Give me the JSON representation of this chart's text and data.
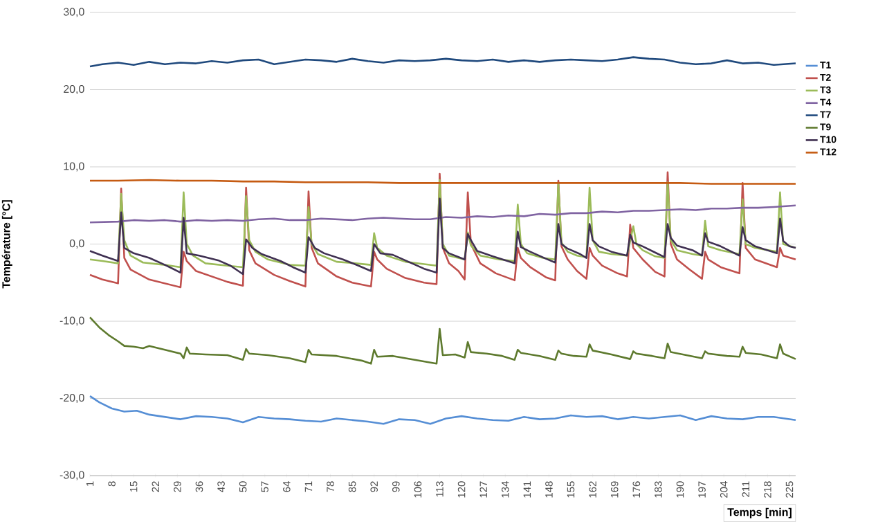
{
  "chart_data": {
    "type": "line",
    "xlabel": "Temps [min]",
    "ylabel": "Température [°C]",
    "xlim": [
      1,
      227
    ],
    "xticks": [
      1,
      8,
      15,
      22,
      29,
      36,
      43,
      50,
      57,
      64,
      71,
      78,
      85,
      92,
      99,
      106,
      113,
      120,
      127,
      134,
      141,
      148,
      155,
      162,
      169,
      176,
      183,
      190,
      197,
      204,
      211,
      218,
      225
    ],
    "ylim": [
      -30,
      30
    ],
    "yticks": [
      {
        "value": -30,
        "label": "-30,0"
      },
      {
        "value": -20,
        "label": "-20,0"
      },
      {
        "value": -10,
        "label": "-10,0"
      },
      {
        "value": 0,
        "label": "0,0"
      },
      {
        "value": 10,
        "label": "10,0"
      },
      {
        "value": 20,
        "label": "20,0"
      },
      {
        "value": 30,
        "label": "30,0"
      }
    ],
    "grid": "y",
    "legend": "right",
    "marker": "none",
    "line_style": "solid",
    "series": [
      {
        "name": "T1",
        "color": "#558ed5",
        "x": [
          1,
          4,
          8,
          12,
          16,
          20,
          25,
          30,
          35,
          40,
          45,
          50,
          55,
          60,
          65,
          70,
          75,
          80,
          85,
          90,
          95,
          100,
          105,
          110,
          115,
          120,
          125,
          130,
          135,
          140,
          145,
          150,
          155,
          160,
          165,
          170,
          175,
          180,
          185,
          190,
          195,
          200,
          205,
          210,
          215,
          220,
          227
        ],
        "values": [
          -19.7,
          -20.5,
          -21.3,
          -21.7,
          -21.6,
          -22.1,
          -22.4,
          -22.7,
          -22.3,
          -22.4,
          -22.6,
          -23.1,
          -22.4,
          -22.6,
          -22.7,
          -22.9,
          -23.0,
          -22.6,
          -22.8,
          -23.0,
          -23.3,
          -22.7,
          -22.8,
          -23.3,
          -22.6,
          -22.3,
          -22.6,
          -22.8,
          -22.9,
          -22.4,
          -22.7,
          -22.6,
          -22.2,
          -22.4,
          -22.3,
          -22.7,
          -22.4,
          -22.6,
          -22.4,
          -22.2,
          -22.8,
          -22.3,
          -22.6,
          -22.7,
          -22.4,
          -22.4,
          -22.8
        ]
      },
      {
        "name": "T2",
        "color": "#c0504d",
        "x": [
          1,
          5,
          10,
          11,
          12,
          14,
          20,
          30,
          31,
          32,
          35,
          40,
          45,
          50,
          51,
          52,
          54,
          60,
          65,
          70,
          71,
          72,
          74,
          80,
          85,
          91,
          92,
          93,
          96,
          102,
          108,
          112,
          113,
          114,
          116,
          119,
          121,
          122,
          123,
          126,
          131,
          137,
          138,
          139,
          142,
          147,
          150,
          151,
          152,
          154,
          157,
          160,
          161,
          162,
          165,
          170,
          173,
          174,
          175,
          178,
          182,
          185,
          186,
          187,
          189,
          193,
          197,
          198,
          199,
          203,
          209,
          210,
          211,
          214,
          221,
          222,
          223,
          227
        ],
        "values": [
          -4.0,
          -4.6,
          -5.1,
          7.2,
          -1.8,
          -3.3,
          -4.6,
          -5.6,
          -1.0,
          -2.2,
          -3.5,
          -4.2,
          -4.9,
          -5.4,
          7.3,
          -0.8,
          -2.5,
          -4.0,
          -4.8,
          -5.5,
          6.8,
          -0.5,
          -2.5,
          -4.2,
          -5.0,
          -5.5,
          -1.0,
          -2.0,
          -3.2,
          -4.4,
          -5.0,
          -5.2,
          9.1,
          -0.5,
          -2.5,
          -3.5,
          -4.6,
          6.7,
          0.0,
          -2.5,
          -3.8,
          -4.7,
          -0.5,
          -1.8,
          -3.0,
          -4.3,
          -4.7,
          8.2,
          -0.3,
          -2.0,
          -3.5,
          -4.5,
          -0.5,
          -1.5,
          -2.8,
          -3.8,
          -4.2,
          2.5,
          -0.5,
          -2.0,
          -3.6,
          -4.2,
          9.3,
          0.0,
          -2.0,
          -3.3,
          -4.5,
          -1.0,
          -2.0,
          -3.0,
          -3.8,
          7.9,
          -0.5,
          -2.0,
          -3.0,
          -0.5,
          -1.5,
          -2.0
        ]
      },
      {
        "name": "T3",
        "color": "#9bbb59",
        "x": [
          1,
          5,
          10,
          11,
          12,
          14,
          18,
          25,
          30,
          31,
          32,
          34,
          38,
          45,
          50,
          51,
          52,
          54,
          58,
          65,
          70,
          71,
          72,
          74,
          80,
          86,
          91,
          92,
          93,
          96,
          102,
          108,
          112,
          113,
          114,
          116,
          121,
          122,
          123,
          126,
          132,
          137,
          138,
          139,
          141,
          146,
          150,
          151,
          152,
          154,
          157,
          160,
          161,
          162,
          164,
          168,
          173,
          175,
          176,
          178,
          182,
          185,
          186,
          187,
          189,
          194,
          197,
          198,
          199,
          203,
          209,
          210,
          211,
          214,
          221,
          222,
          223,
          227
        ],
        "values": [
          -2.0,
          -2.2,
          -2.5,
          6.5,
          0.5,
          -1.5,
          -2.4,
          -2.7,
          -3.0,
          6.7,
          0.0,
          -1.5,
          -2.5,
          -2.8,
          -3.0,
          6.2,
          0.5,
          -1.0,
          -2.0,
          -2.7,
          -2.8,
          4.8,
          0.0,
          -1.3,
          -2.3,
          -2.5,
          -2.7,
          1.4,
          -0.5,
          -1.5,
          -2.3,
          -2.6,
          -2.8,
          8.3,
          0.0,
          -1.5,
          -2.0,
          1.5,
          -0.2,
          -1.5,
          -2.0,
          -2.2,
          5.1,
          0.0,
          -1.2,
          -1.8,
          -2.0,
          7.9,
          0.2,
          -1.0,
          -1.5,
          -1.7,
          7.3,
          0.5,
          -1.0,
          -1.3,
          -1.5,
          2.3,
          0.0,
          -0.8,
          -1.6,
          -1.8,
          8.0,
          0.5,
          -0.8,
          -1.3,
          -1.5,
          3.0,
          -0.3,
          -0.8,
          -1.3,
          5.8,
          0.0,
          -0.5,
          -1.0,
          6.7,
          0.0,
          -0.5
        ]
      },
      {
        "name": "T4",
        "color": "#8064a2",
        "x": [
          1,
          10,
          15,
          20,
          25,
          30,
          35,
          40,
          45,
          50,
          55,
          60,
          65,
          70,
          75,
          80,
          85,
          90,
          95,
          100,
          105,
          110,
          115,
          120,
          125,
          130,
          135,
          140,
          145,
          150,
          155,
          160,
          165,
          170,
          175,
          180,
          185,
          190,
          195,
          200,
          205,
          210,
          215,
          220,
          227
        ],
        "values": [
          2.8,
          2.9,
          3.1,
          3.0,
          3.1,
          2.9,
          3.1,
          3.0,
          3.1,
          3.0,
          3.2,
          3.3,
          3.1,
          3.1,
          3.3,
          3.2,
          3.1,
          3.3,
          3.4,
          3.3,
          3.2,
          3.2,
          3.5,
          3.4,
          3.6,
          3.5,
          3.7,
          3.6,
          3.9,
          3.8,
          4.0,
          4.0,
          4.2,
          4.1,
          4.3,
          4.3,
          4.4,
          4.5,
          4.4,
          4.6,
          4.6,
          4.7,
          4.7,
          4.8,
          5.0
        ]
      },
      {
        "name": "T7",
        "color": "#1f497d",
        "x": [
          1,
          5,
          10,
          15,
          20,
          25,
          30,
          35,
          40,
          45,
          50,
          55,
          60,
          65,
          70,
          75,
          80,
          85,
          90,
          95,
          100,
          105,
          110,
          115,
          120,
          125,
          130,
          135,
          140,
          145,
          150,
          155,
          160,
          165,
          170,
          175,
          180,
          185,
          190,
          195,
          200,
          205,
          210,
          215,
          220,
          227
        ],
        "values": [
          23.0,
          23.3,
          23.5,
          23.2,
          23.6,
          23.3,
          23.5,
          23.4,
          23.7,
          23.5,
          23.8,
          23.9,
          23.3,
          23.6,
          23.9,
          23.8,
          23.6,
          24.0,
          23.7,
          23.5,
          23.8,
          23.7,
          23.8,
          24.0,
          23.8,
          23.7,
          23.9,
          23.6,
          23.8,
          23.6,
          23.8,
          23.9,
          23.8,
          23.7,
          23.9,
          24.2,
          24.0,
          23.9,
          23.5,
          23.3,
          23.4,
          23.8,
          23.4,
          23.5,
          23.2,
          23.4
        ]
      },
      {
        "name": "T9",
        "color": "#5e7a2e",
        "x": [
          1,
          4,
          7,
          10,
          12,
          15,
          18,
          20,
          25,
          30,
          31,
          32,
          33,
          38,
          45,
          50,
          51,
          52,
          58,
          65,
          70,
          71,
          72,
          80,
          88,
          91,
          92,
          93,
          98,
          105,
          112,
          113,
          114,
          118,
          121,
          122,
          123,
          128,
          133,
          137,
          138,
          139,
          145,
          150,
          151,
          152,
          156,
          160,
          161,
          162,
          168,
          174,
          175,
          176,
          181,
          185,
          186,
          187,
          192,
          197,
          198,
          199,
          205,
          209,
          210,
          211,
          216,
          221,
          222,
          223,
          227
        ],
        "values": [
          -9.5,
          -10.8,
          -11.8,
          -12.6,
          -13.2,
          -13.3,
          -13.5,
          -13.2,
          -13.7,
          -14.2,
          -14.8,
          -13.4,
          -14.2,
          -14.3,
          -14.4,
          -15.0,
          -13.6,
          -14.2,
          -14.4,
          -14.8,
          -15.3,
          -13.7,
          -14.3,
          -14.5,
          -15.1,
          -15.5,
          -13.7,
          -14.6,
          -14.5,
          -15.0,
          -15.5,
          -11.0,
          -14.4,
          -14.3,
          -14.7,
          -12.7,
          -14.0,
          -14.2,
          -14.5,
          -15.0,
          -13.7,
          -14.1,
          -14.5,
          -15.0,
          -13.8,
          -14.2,
          -14.5,
          -14.6,
          -13.0,
          -13.8,
          -14.3,
          -14.9,
          -13.9,
          -14.2,
          -14.5,
          -14.8,
          -12.9,
          -14.0,
          -14.4,
          -14.8,
          -13.9,
          -14.2,
          -14.5,
          -14.6,
          -13.3,
          -14.1,
          -14.3,
          -14.8,
          -13.0,
          -14.2,
          -14.9
        ]
      },
      {
        "name": "T10",
        "color": "#403152",
        "x": [
          1,
          5,
          10,
          11,
          12,
          15,
          20,
          25,
          30,
          31,
          32,
          36,
          42,
          46,
          50,
          51,
          53,
          56,
          62,
          66,
          70,
          71,
          73,
          76,
          82,
          87,
          91,
          92,
          94,
          98,
          103,
          108,
          112,
          113,
          114,
          116,
          121,
          122,
          123,
          125,
          130,
          137,
          138,
          139,
          142,
          147,
          150,
          151,
          152,
          154,
          158,
          160,
          161,
          162,
          164,
          168,
          173,
          174,
          175,
          178,
          182,
          185,
          186,
          187,
          189,
          194,
          197,
          198,
          199,
          203,
          209,
          210,
          211,
          214,
          221,
          222,
          223,
          225,
          227
        ],
        "values": [
          -0.9,
          -1.5,
          -2.2,
          4.1,
          -0.5,
          -1.2,
          -1.8,
          -2.7,
          -3.7,
          3.4,
          -1.2,
          -1.5,
          -2.1,
          -2.8,
          -3.9,
          0.6,
          -0.5,
          -1.3,
          -2.2,
          -3.0,
          -3.7,
          0.9,
          -0.5,
          -1.2,
          -2.0,
          -2.8,
          -3.5,
          0.0,
          -1.2,
          -1.4,
          -2.3,
          -3.2,
          -3.7,
          5.9,
          -0.5,
          -1.2,
          -2.0,
          1.3,
          0.5,
          -0.9,
          -1.6,
          -2.5,
          1.6,
          -0.4,
          -1.0,
          -1.9,
          -2.4,
          2.6,
          0.0,
          -0.6,
          -1.3,
          -1.8,
          2.6,
          0.5,
          -0.3,
          -1.0,
          -1.5,
          1.2,
          0.2,
          -0.3,
          -1.1,
          -1.7,
          2.6,
          0.8,
          -0.2,
          -0.8,
          -1.5,
          1.4,
          0.3,
          -0.3,
          -1.5,
          2.2,
          0.5,
          -0.3,
          -1.2,
          3.3,
          0.4,
          -0.3,
          -0.5
        ]
      },
      {
        "name": "T12",
        "color": "#c55a11",
        "x": [
          1,
          10,
          20,
          30,
          40,
          50,
          60,
          70,
          80,
          90,
          100,
          110,
          120,
          130,
          140,
          150,
          160,
          170,
          180,
          190,
          200,
          210,
          220,
          227
        ],
        "values": [
          8.2,
          8.2,
          8.3,
          8.2,
          8.2,
          8.1,
          8.1,
          8.0,
          8.0,
          8.0,
          7.9,
          7.9,
          7.9,
          7.9,
          7.9,
          7.9,
          7.9,
          7.9,
          7.9,
          7.9,
          7.8,
          7.8,
          7.8,
          7.8
        ]
      }
    ]
  }
}
